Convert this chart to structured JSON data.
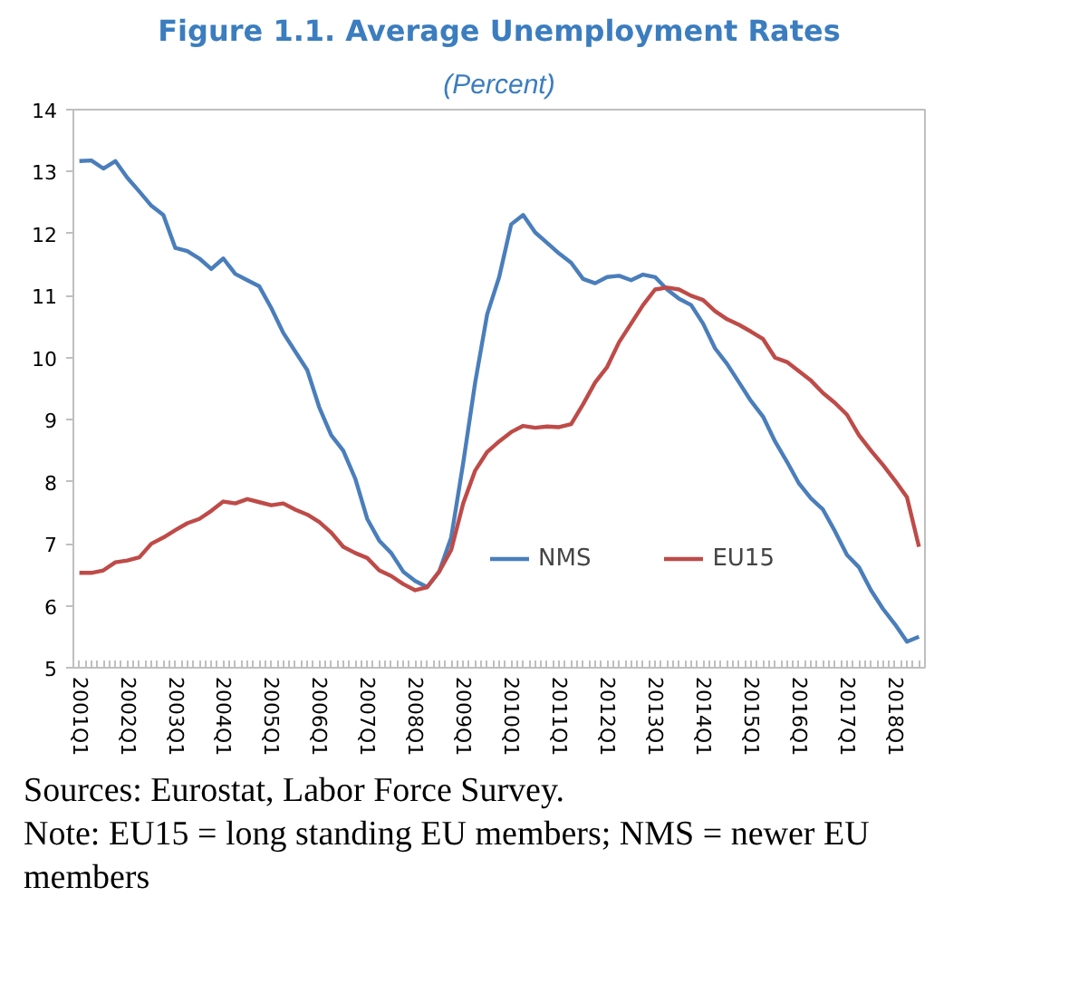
{
  "chart_data": {
    "type": "line",
    "title": "Figure 1.1. Average Unemployment Rates",
    "subtitle": "(Percent)",
    "categories": [
      "2001Q1",
      null,
      null,
      null,
      "2002Q1",
      null,
      null,
      null,
      "2003Q1",
      null,
      null,
      null,
      "2004Q1",
      null,
      null,
      null,
      "2005Q1",
      null,
      null,
      null,
      "2006Q1",
      null,
      null,
      null,
      "2007Q1",
      null,
      null,
      null,
      "2008Q1",
      null,
      null,
      null,
      "2009Q1",
      null,
      null,
      null,
      "2010Q1",
      null,
      null,
      null,
      "2011Q1",
      null,
      null,
      null,
      "2012Q1",
      null,
      null,
      null,
      "2013Q1",
      null,
      null,
      null,
      "2014Q1",
      null,
      null,
      null,
      "2015Q1",
      null,
      null,
      null,
      "2016Q1",
      null,
      null,
      null,
      "2017Q1",
      null,
      null,
      null,
      "2018Q1",
      null,
      null
    ],
    "series": [
      {
        "name": "NMS",
        "color": "#4a7ebb",
        "values": [
          13.17,
          13.18,
          13.05,
          13.17,
          12.9,
          12.68,
          12.45,
          12.3,
          11.77,
          11.72,
          11.6,
          11.43,
          11.6,
          11.35,
          11.25,
          11.15,
          10.8,
          10.4,
          10.1,
          9.8,
          9.2,
          8.75,
          8.5,
          8.05,
          7.4,
          7.05,
          6.85,
          6.55,
          6.4,
          6.3,
          6.55,
          7.1,
          8.3,
          9.6,
          10.7,
          11.3,
          12.15,
          12.3,
          12.02,
          11.85,
          11.68,
          11.53,
          11.27,
          11.2,
          11.3,
          11.32,
          11.25,
          11.34,
          11.3,
          11.1,
          10.95,
          10.85,
          10.55,
          10.15,
          9.9,
          9.6,
          9.3,
          9.05,
          8.65,
          8.32,
          7.97,
          7.73,
          7.55,
          7.2,
          6.82,
          6.62,
          6.25,
          5.95,
          5.7,
          5.42,
          5.5
        ]
      },
      {
        "name": "EU15",
        "color": "#be4b48",
        "values": [
          6.53,
          6.53,
          6.57,
          6.7,
          6.73,
          6.78,
          7.0,
          7.1,
          7.22,
          7.33,
          7.4,
          7.53,
          7.68,
          7.65,
          7.72,
          7.67,
          7.62,
          7.65,
          7.55,
          7.47,
          7.35,
          7.18,
          6.95,
          6.85,
          6.77,
          6.57,
          6.48,
          6.35,
          6.25,
          6.3,
          6.55,
          6.9,
          7.65,
          8.18,
          8.48,
          8.65,
          8.8,
          8.9,
          8.87,
          8.89,
          8.88,
          8.93,
          9.25,
          9.6,
          9.85,
          10.25,
          10.55,
          10.85,
          11.1,
          11.13,
          11.1,
          11.0,
          10.93,
          10.75,
          10.62,
          10.53,
          10.42,
          10.3,
          10.0,
          9.93,
          9.78,
          9.63,
          9.43,
          9.27,
          9.08,
          8.75,
          8.5,
          8.27,
          8.02,
          7.75,
          6.95
        ]
      }
    ],
    "ylim": [
      5,
      14
    ],
    "yticks": [
      5,
      6,
      7,
      8,
      9,
      10,
      11,
      12,
      13,
      14
    ],
    "grid": false,
    "legend": "bottom",
    "marker": "none",
    "line_style": "solid",
    "annotations": [
      "Sources: Eurostat, Labor Force Survey.",
      "Note: EU15 = long standing EU members; NMS = newer EU members"
    ]
  }
}
